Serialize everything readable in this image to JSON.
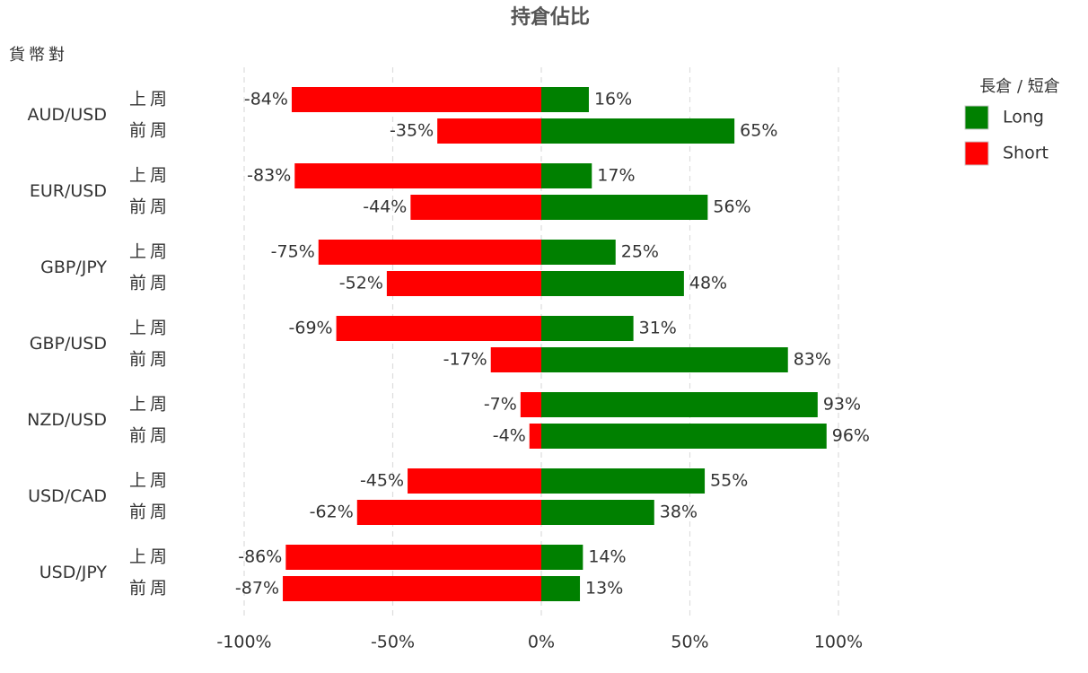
{
  "chart_data": {
    "type": "bar",
    "orientation": "horizontal",
    "title": "持倉佔比",
    "y_axis_label": "貨幣對",
    "legend_title": "長倉 / 短倉",
    "legend_position": "right",
    "grid": true,
    "groups": [
      "AUD/USD",
      "EUR/USD",
      "GBP/JPY",
      "GBP/USD",
      "NZD/USD",
      "USD/CAD",
      "USD/JPY"
    ],
    "categories": [
      "上周",
      "前周",
      "上周",
      "前周",
      "上周",
      "前周",
      "上周",
      "前周",
      "上周",
      "前周",
      "上周",
      "前周",
      "上周",
      "前周"
    ],
    "series": [
      {
        "name": "Long",
        "color": "#008000",
        "values": [
          16,
          65,
          17,
          56,
          25,
          48,
          31,
          83,
          93,
          96,
          55,
          38,
          14,
          13
        ],
        "value_labels": [
          "16%",
          "65%",
          "17%",
          "56%",
          "25%",
          "48%",
          "31%",
          "83%",
          "93%",
          "96%",
          "55%",
          "38%",
          "14%",
          "13%"
        ]
      },
      {
        "name": "Short",
        "color": "#ff0000",
        "values": [
          -84,
          -35,
          -83,
          -44,
          -75,
          -52,
          -69,
          -17,
          -7,
          -4,
          -45,
          -62,
          -86,
          -87
        ],
        "value_labels": [
          "-84%",
          "-35%",
          "-83%",
          "-44%",
          "-75%",
          "-52%",
          "-69%",
          "-17%",
          "-7%",
          "-4%",
          "-45%",
          "-62%",
          "-86%",
          "-87%"
        ]
      }
    ],
    "xlim": [
      -100,
      100
    ],
    "xticks": [
      {
        "value": -100,
        "label": "-100%"
      },
      {
        "value": -50,
        "label": "-50%"
      },
      {
        "value": 0,
        "label": "0%"
      },
      {
        "value": 50,
        "label": "50%"
      },
      {
        "value": 100,
        "label": "100%"
      }
    ]
  }
}
